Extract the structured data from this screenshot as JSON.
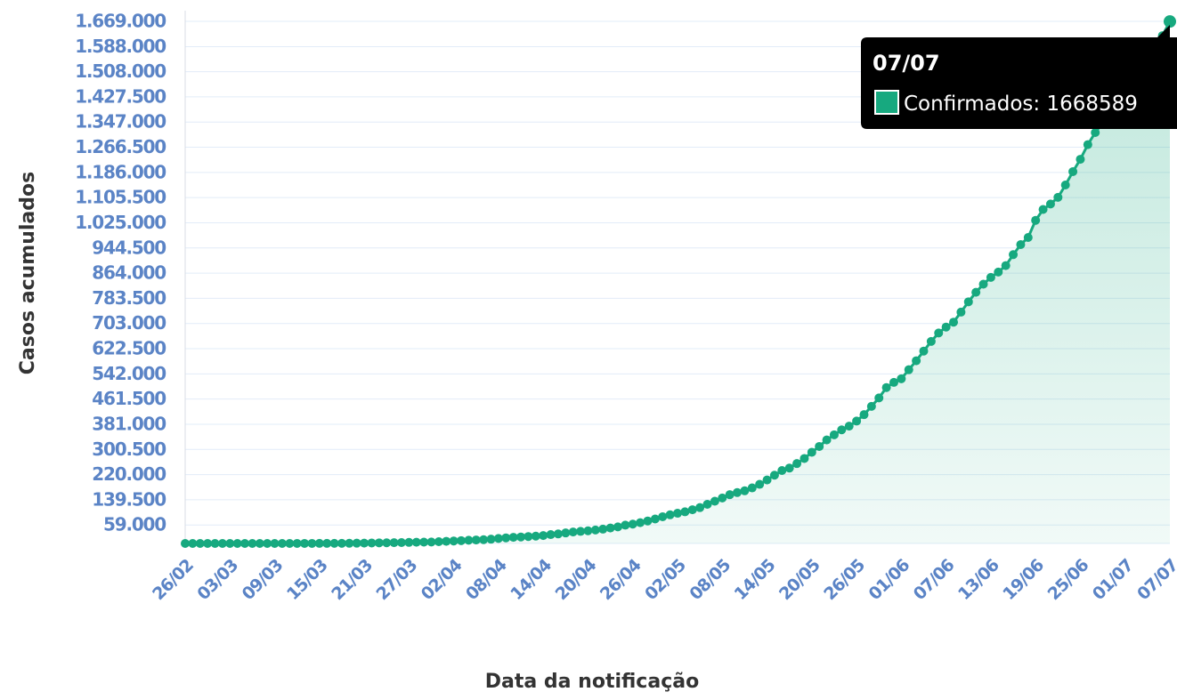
{
  "chart_data": {
    "type": "line",
    "y_label": "Casos acumulados",
    "x_label": "Data da notificação",
    "color": "#17a97f",
    "grid": true,
    "categories": [
      "26/02",
      null,
      null,
      null,
      null,
      null,
      "03/03",
      null,
      null,
      null,
      null,
      null,
      "09/03",
      null,
      null,
      null,
      null,
      null,
      "15/03",
      null,
      null,
      null,
      null,
      null,
      "21/03",
      null,
      null,
      null,
      null,
      null,
      "27/03",
      null,
      null,
      null,
      null,
      null,
      "02/04",
      null,
      null,
      null,
      null,
      null,
      "08/04",
      null,
      null,
      null,
      null,
      null,
      "14/04",
      null,
      null,
      null,
      null,
      null,
      "20/04",
      null,
      null,
      null,
      null,
      null,
      "26/04",
      null,
      null,
      null,
      null,
      null,
      "02/05",
      null,
      null,
      null,
      null,
      null,
      "08/05",
      null,
      null,
      null,
      null,
      null,
      "14/05",
      null,
      null,
      null,
      null,
      null,
      "20/05",
      null,
      null,
      null,
      null,
      null,
      "26/05",
      null,
      null,
      null,
      null,
      null,
      "01/06",
      null,
      null,
      null,
      null,
      null,
      "07/06",
      null,
      null,
      null,
      null,
      null,
      "13/06",
      null,
      null,
      null,
      null,
      null,
      "19/06",
      null,
      null,
      null,
      null,
      null,
      "25/06",
      null,
      null,
      null,
      null,
      null,
      "01/07",
      null,
      null,
      null,
      null,
      null,
      "07/07"
    ],
    "values": [
      1,
      1,
      1,
      1,
      1,
      2,
      2,
      2,
      4,
      8,
      13,
      19,
      25,
      34,
      52,
      77,
      98,
      121,
      200,
      234,
      291,
      428,
      621,
      904,
      1128,
      1546,
      1891,
      2201,
      2433,
      2915,
      3417,
      3904,
      4256,
      4579,
      5717,
      6836,
      7910,
      9056,
      10278,
      11130,
      12056,
      13717,
      15927,
      17857,
      19638,
      20727,
      22169,
      23430,
      25262,
      28320,
      30425,
      33682,
      36599,
      38654,
      40581,
      43079,
      45757,
      49492,
      52995,
      58509,
      61888,
      66501,
      71886,
      78162,
      85380,
      91589,
      96559,
      101147,
      107780,
      114715,
      125218,
      135106,
      145328,
      155939,
      162699,
      168331,
      177589,
      188974,
      202918,
      218223,
      233142,
      241080,
      255368,
      271628,
      291579,
      310087,
      330890,
      347398,
      363211,
      374898,
      391222,
      411821,
      438238,
      465166,
      498440,
      514849,
      526447,
      555383,
      584016,
      614941,
      645771,
      672846,
      691758,
      707412,
      739503,
      772416,
      802828,
      828810,
      850514,
      867624,
      888271,
      923189,
      955377,
      978142,
      1032913,
      1067579,
      1085038,
      1106470,
      1145906,
      1188631,
      1228114,
      1274974,
      1313667,
      1344143,
      1368195,
      1402041,
      1448753,
      1496858,
      1539081,
      1577004,
      1603055,
      1623284,
      1668589
    ],
    "ylim": [
      0,
      1669000
    ],
    "yticks": [
      {
        "value": 59000,
        "label": "59.000"
      },
      {
        "value": 139500,
        "label": "139.500"
      },
      {
        "value": 220000,
        "label": "220.000"
      },
      {
        "value": 300500,
        "label": "300.500"
      },
      {
        "value": 381000,
        "label": "381.000"
      },
      {
        "value": 461500,
        "label": "461.500"
      },
      {
        "value": 542000,
        "label": "542.000"
      },
      {
        "value": 622500,
        "label": "622.500"
      },
      {
        "value": 703000,
        "label": "703.000"
      },
      {
        "value": 783500,
        "label": "783.500"
      },
      {
        "value": 864000,
        "label": "864.000"
      },
      {
        "value": 944500,
        "label": "944.500"
      },
      {
        "value": 1025000,
        "label": "1.025.000"
      },
      {
        "value": 1105500,
        "label": "1.105.500"
      },
      {
        "value": 1186000,
        "label": "1.186.000"
      },
      {
        "value": 1266500,
        "label": "1.266.500"
      },
      {
        "value": 1347000,
        "label": "1.347.000"
      },
      {
        "value": 1427500,
        "label": "1.427.500"
      },
      {
        "value": 1508000,
        "label": "1.508.000"
      },
      {
        "value": 1588000,
        "label": "1.588.000"
      },
      {
        "value": 1669000,
        "label": "1.669.000"
      }
    ],
    "tooltip": {
      "label": "Confirmados: 1668589"
    }
  }
}
